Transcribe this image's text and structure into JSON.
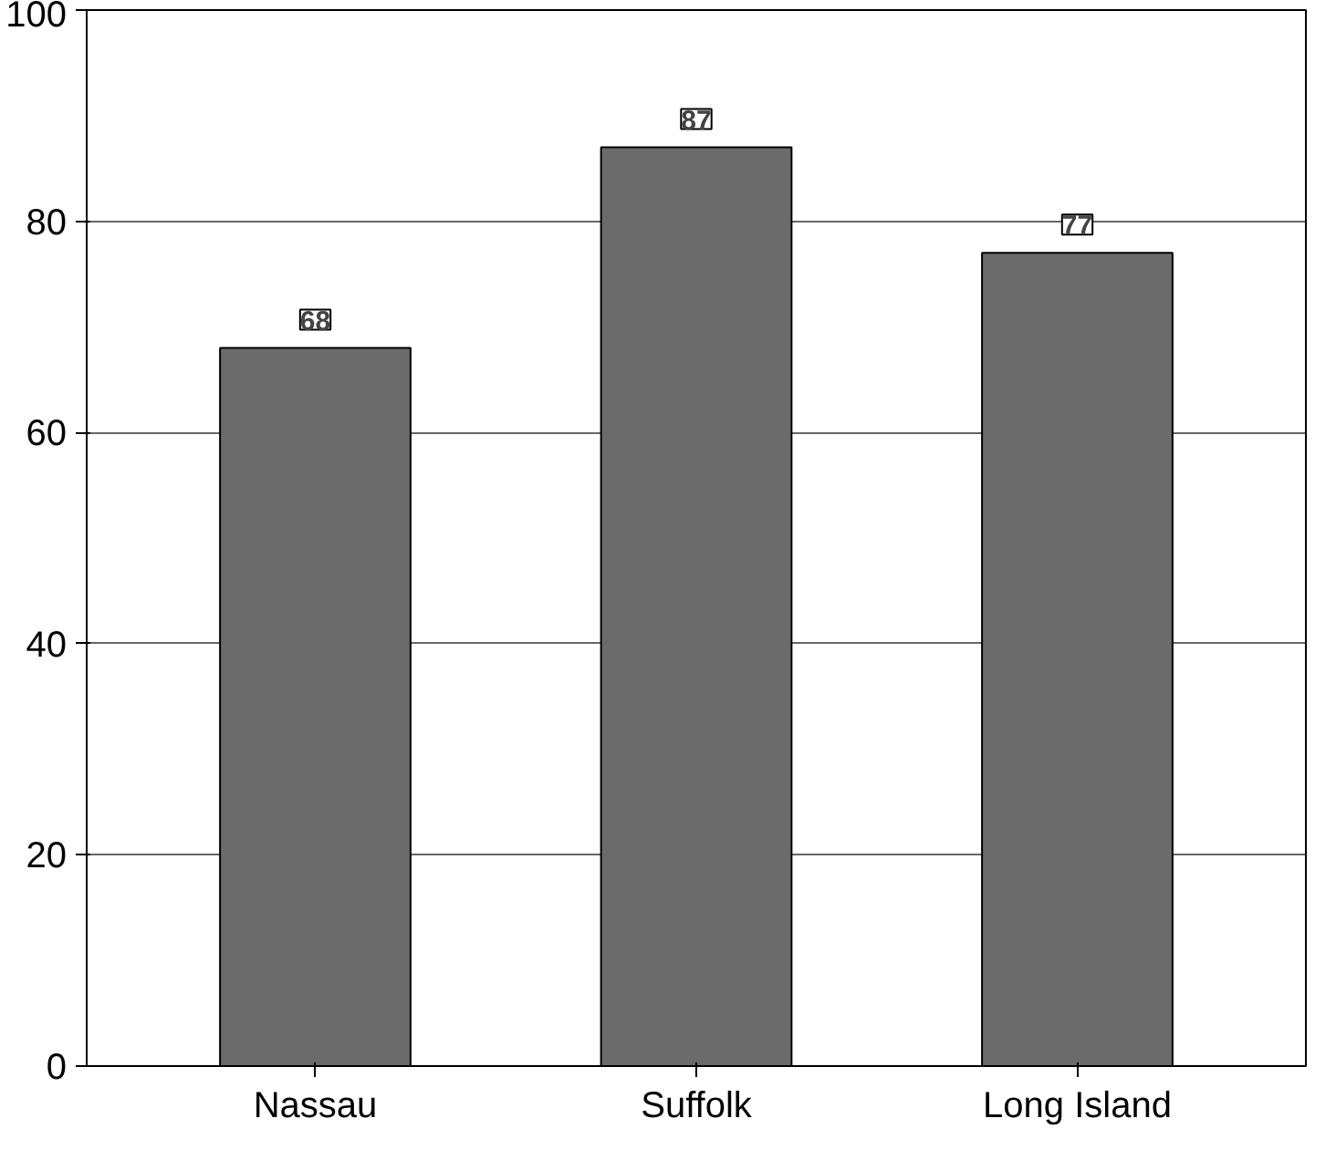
{
  "chart_data": {
    "type": "bar",
    "categories": [
      "Nassau",
      "Suffolk",
      "Long Island"
    ],
    "values": [
      68,
      87,
      77
    ],
    "color": "#6b6b6b",
    "ylim": [
      0,
      100
    ],
    "yticks": [
      0,
      20,
      40,
      60,
      80,
      100
    ],
    "grid": "y",
    "data_labels": true
  }
}
